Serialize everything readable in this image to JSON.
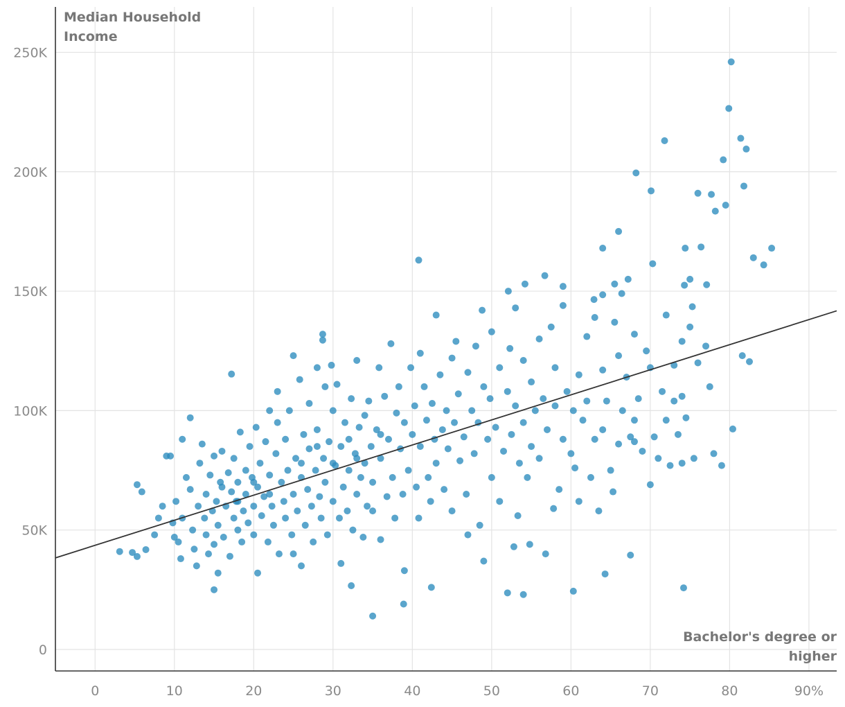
{
  "chart_data": {
    "type": "scatter",
    "ylabel_lines": [
      "Median Household",
      "Income"
    ],
    "xlabel_lines": [
      "Bachelor's degree or",
      "higher"
    ],
    "xlim": [
      -5,
      93.5
    ],
    "ylim": [
      -9000,
      269000
    ],
    "x_ticks": [
      {
        "value": 0,
        "label": "0"
      },
      {
        "value": 10,
        "label": "10"
      },
      {
        "value": 20,
        "label": "20"
      },
      {
        "value": 30,
        "label": "30"
      },
      {
        "value": 40,
        "label": "40"
      },
      {
        "value": 50,
        "label": "50"
      },
      {
        "value": 60,
        "label": "60"
      },
      {
        "value": 70,
        "label": "70"
      },
      {
        "value": 80,
        "label": "80"
      },
      {
        "value": 90,
        "label": "90%"
      }
    ],
    "y_ticks": [
      {
        "value": 0,
        "label": "0"
      },
      {
        "value": 50000,
        "label": "50K"
      },
      {
        "value": 100000,
        "label": "100K"
      },
      {
        "value": 150000,
        "label": "150K"
      },
      {
        "value": 200000,
        "label": "200K"
      },
      {
        "value": 250000,
        "label": "250K"
      }
    ],
    "grid": true,
    "point_color": "#2b8cbe",
    "trendline": {
      "intercept": 43600,
      "slope": 1050,
      "color": "#333333"
    },
    "points_k": [
      [
        80.2,
        246
      ],
      [
        79.9,
        226.5
      ],
      [
        81.4,
        214
      ],
      [
        71.8,
        213
      ],
      [
        82.1,
        209.5
      ],
      [
        79.2,
        205
      ],
      [
        68.2,
        199.5
      ],
      [
        81.8,
        194
      ],
      [
        70.1,
        192
      ],
      [
        76,
        191
      ],
      [
        77.7,
        190.5
      ],
      [
        79.5,
        186
      ],
      [
        78.2,
        183.5
      ],
      [
        66,
        175
      ],
      [
        64,
        168
      ],
      [
        85.3,
        168
      ],
      [
        76.4,
        168.5
      ],
      [
        74.4,
        168
      ],
      [
        83,
        164
      ],
      [
        84.3,
        161
      ],
      [
        70.3,
        161.5
      ],
      [
        40.8,
        163
      ],
      [
        56.7,
        156.5
      ],
      [
        67.2,
        155
      ],
      [
        75,
        155
      ],
      [
        54.2,
        153
      ],
      [
        65.5,
        153
      ],
      [
        74.3,
        152.5
      ],
      [
        77.1,
        152.7
      ],
      [
        59,
        152
      ],
      [
        52.1,
        150
      ],
      [
        64,
        148.5
      ],
      [
        66.4,
        149
      ],
      [
        75.3,
        143.5
      ],
      [
        62.9,
        146.5
      ],
      [
        17.2,
        115.3
      ],
      [
        28.7,
        132
      ],
      [
        28.7,
        129.5
      ],
      [
        35,
        14
      ],
      [
        38.9,
        19
      ],
      [
        52,
        23.7
      ],
      [
        54,
        23
      ],
      [
        60.3,
        24.4
      ],
      [
        74.2,
        25.8
      ],
      [
        15,
        25
      ],
      [
        64.3,
        31.6
      ],
      [
        42.4,
        26
      ],
      [
        32.3,
        26.7
      ],
      [
        67.5,
        39.5
      ],
      [
        80.4,
        92.3
      ],
      [
        82.5,
        120.5
      ],
      [
        81.6,
        123
      ],
      [
        3.1,
        41
      ],
      [
        4.7,
        40.6
      ],
      [
        6.4,
        41.8
      ],
      [
        5.3,
        38.9
      ],
      [
        5.3,
        69
      ],
      [
        5.9,
        66
      ],
      [
        7.5,
        48
      ],
      [
        8,
        55
      ],
      [
        8.5,
        60
      ],
      [
        9,
        81
      ],
      [
        9.5,
        81
      ],
      [
        9.8,
        53
      ],
      [
        10,
        47
      ],
      [
        10.2,
        62
      ],
      [
        10.5,
        45
      ],
      [
        10.8,
        38
      ],
      [
        11,
        88
      ],
      [
        11,
        55
      ],
      [
        11.5,
        72
      ],
      [
        12,
        67
      ],
      [
        12,
        97
      ],
      [
        12.3,
        50
      ],
      [
        12.5,
        42
      ],
      [
        12.8,
        35
      ],
      [
        13,
        60
      ],
      [
        13.2,
        78
      ],
      [
        13.5,
        86
      ],
      [
        13.8,
        55
      ],
      [
        14,
        65
      ],
      [
        14,
        48
      ],
      [
        14.3,
        40
      ],
      [
        14.5,
        73
      ],
      [
        14.8,
        58
      ],
      [
        15,
        81
      ],
      [
        15,
        44
      ],
      [
        15.3,
        62
      ],
      [
        15.5,
        52
      ],
      [
        15.5,
        32
      ],
      [
        15.8,
        70
      ],
      [
        16,
        83
      ],
      [
        16.2,
        47
      ],
      [
        16.5,
        60
      ],
      [
        16.8,
        74
      ],
      [
        17,
        39
      ],
      [
        17.2,
        66
      ],
      [
        17.5,
        55
      ],
      [
        17.5,
        80
      ],
      [
        17.8,
        62
      ],
      [
        18,
        70
      ],
      [
        18,
        50
      ],
      [
        18.3,
        91
      ],
      [
        18.5,
        45
      ],
      [
        18.7,
        58
      ],
      [
        19,
        75
      ],
      [
        19,
        65
      ],
      [
        19.3,
        53
      ],
      [
        19.5,
        85
      ],
      [
        19.8,
        72
      ],
      [
        20,
        60
      ],
      [
        20,
        48
      ],
      [
        20.3,
        93
      ],
      [
        20.5,
        68
      ],
      [
        20.5,
        32
      ],
      [
        20.8,
        78
      ],
      [
        21,
        56
      ],
      [
        21.3,
        64
      ],
      [
        21.5,
        87
      ],
      [
        21.8,
        45
      ],
      [
        22,
        73
      ],
      [
        22,
        100
      ],
      [
        22.3,
        60
      ],
      [
        22.5,
        52
      ],
      [
        22.8,
        82
      ],
      [
        23,
        95
      ],
      [
        23,
        108
      ],
      [
        23.2,
        40
      ],
      [
        23.5,
        70
      ],
      [
        23.8,
        62
      ],
      [
        24,
        55
      ],
      [
        24,
        88
      ],
      [
        24.3,
        75
      ],
      [
        24.5,
        100
      ],
      [
        24.8,
        48
      ],
      [
        25,
        123
      ],
      [
        25,
        65
      ],
      [
        25.3,
        80
      ],
      [
        25.5,
        58
      ],
      [
        25.8,
        113
      ],
      [
        26,
        72
      ],
      [
        26,
        35
      ],
      [
        26.3,
        90
      ],
      [
        26.5,
        52
      ],
      [
        26.8,
        67
      ],
      [
        27,
        103
      ],
      [
        27,
        84
      ],
      [
        27.3,
        60
      ],
      [
        27.5,
        45
      ],
      [
        27.8,
        75
      ],
      [
        28,
        118
      ],
      [
        28,
        92
      ],
      [
        28.3,
        64
      ],
      [
        28.5,
        55
      ],
      [
        28.8,
        80
      ],
      [
        29,
        110
      ],
      [
        29,
        70
      ],
      [
        29.3,
        48
      ],
      [
        29.5,
        87
      ],
      [
        29.8,
        119
      ],
      [
        30,
        62
      ],
      [
        30,
        100
      ],
      [
        30.3,
        77
      ],
      [
        30.5,
        111
      ],
      [
        30.8,
        55
      ],
      [
        31,
        85
      ],
      [
        31,
        36
      ],
      [
        31.3,
        68
      ],
      [
        31.5,
        95
      ],
      [
        31.8,
        58
      ],
      [
        32,
        75
      ],
      [
        32,
        88
      ],
      [
        32.3,
        105
      ],
      [
        32.5,
        50
      ],
      [
        32.8,
        82
      ],
      [
        33,
        121
      ],
      [
        33,
        65
      ],
      [
        33.3,
        93
      ],
      [
        33.5,
        72
      ],
      [
        33.8,
        47
      ],
      [
        34,
        98
      ],
      [
        34,
        78
      ],
      [
        34.3,
        60
      ],
      [
        34.5,
        104
      ],
      [
        34.8,
        85
      ],
      [
        35,
        58
      ],
      [
        35,
        70
      ],
      [
        35.5,
        92
      ],
      [
        35.8,
        118
      ],
      [
        36,
        80
      ],
      [
        36,
        46
      ],
      [
        36.5,
        106
      ],
      [
        36.8,
        64
      ],
      [
        37,
        88
      ],
      [
        37.3,
        128
      ],
      [
        37.5,
        72
      ],
      [
        37.8,
        55
      ],
      [
        38,
        99
      ],
      [
        38.3,
        110
      ],
      [
        38.5,
        84
      ],
      [
        38.8,
        65
      ],
      [
        39,
        95
      ],
      [
        39,
        33
      ],
      [
        39.5,
        75
      ],
      [
        39.8,
        118
      ],
      [
        40,
        90
      ],
      [
        40.3,
        102
      ],
      [
        40.5,
        68
      ],
      [
        40.8,
        55
      ],
      [
        41,
        124
      ],
      [
        41,
        85
      ],
      [
        41.5,
        110
      ],
      [
        41.8,
        96
      ],
      [
        42,
        72
      ],
      [
        42.3,
        62
      ],
      [
        42.5,
        103
      ],
      [
        42.8,
        88
      ],
      [
        43,
        140
      ],
      [
        43,
        78
      ],
      [
        43.5,
        115
      ],
      [
        43.8,
        92
      ],
      [
        44,
        67
      ],
      [
        44.3,
        100
      ],
      [
        44.5,
        84
      ],
      [
        45,
        58
      ],
      [
        45,
        122
      ],
      [
        45.3,
        95
      ],
      [
        45.5,
        129
      ],
      [
        45.8,
        107
      ],
      [
        46,
        79
      ],
      [
        46.5,
        89
      ],
      [
        46.8,
        65
      ],
      [
        47,
        116
      ],
      [
        47,
        48
      ],
      [
        47.5,
        100
      ],
      [
        47.8,
        82
      ],
      [
        48,
        127
      ],
      [
        48.3,
        95
      ],
      [
        48.5,
        52
      ],
      [
        48.8,
        142
      ],
      [
        49,
        110
      ],
      [
        49,
        37
      ],
      [
        49.5,
        88
      ],
      [
        49.8,
        105
      ],
      [
        50,
        72
      ],
      [
        50,
        133
      ],
      [
        50.5,
        93
      ],
      [
        51,
        62
      ],
      [
        51,
        118
      ],
      [
        51.5,
        83
      ],
      [
        52,
        108
      ],
      [
        52.3,
        126
      ],
      [
        52.5,
        90
      ],
      [
        52.8,
        43
      ],
      [
        53,
        143
      ],
      [
        53,
        102
      ],
      [
        53.3,
        56
      ],
      [
        53.5,
        78
      ],
      [
        54,
        121
      ],
      [
        54,
        95
      ],
      [
        54.5,
        72
      ],
      [
        54.8,
        44
      ],
      [
        55,
        112
      ],
      [
        55,
        85
      ],
      [
        55.5,
        100
      ],
      [
        56,
        80
      ],
      [
        56,
        130
      ],
      [
        56.5,
        105
      ],
      [
        56.8,
        40
      ],
      [
        57,
        92
      ],
      [
        57.5,
        135
      ],
      [
        57.8,
        59
      ],
      [
        58,
        118
      ],
      [
        58,
        102
      ],
      [
        58.5,
        67
      ],
      [
        59,
        88
      ],
      [
        59,
        144
      ],
      [
        59.5,
        108
      ],
      [
        60,
        82
      ],
      [
        60.3,
        100
      ],
      [
        60.5,
        76
      ],
      [
        61,
        115
      ],
      [
        61,
        62
      ],
      [
        61.5,
        96
      ],
      [
        62,
        131
      ],
      [
        62,
        104
      ],
      [
        62.5,
        72
      ],
      [
        63,
        88
      ],
      [
        63,
        139
      ],
      [
        63.5,
        58
      ],
      [
        64,
        117
      ],
      [
        64,
        92
      ],
      [
        64.5,
        104
      ],
      [
        65,
        75
      ],
      [
        65.3,
        66
      ],
      [
        65.5,
        137
      ],
      [
        66,
        86
      ],
      [
        66,
        123
      ],
      [
        66.5,
        100
      ],
      [
        67,
        114
      ],
      [
        67.5,
        89
      ],
      [
        68,
        132
      ],
      [
        68,
        96
      ],
      [
        68.5,
        105
      ],
      [
        69,
        83
      ],
      [
        69.5,
        125
      ],
      [
        70,
        69
      ],
      [
        70,
        118
      ],
      [
        70.5,
        89
      ],
      [
        71,
        80
      ],
      [
        71.5,
        108
      ],
      [
        72,
        96
      ],
      [
        72,
        140
      ],
      [
        72.5,
        77
      ],
      [
        73,
        119
      ],
      [
        73,
        104
      ],
      [
        73.5,
        90
      ],
      [
        74,
        106
      ],
      [
        74,
        129
      ],
      [
        74.5,
        97
      ],
      [
        75,
        135
      ],
      [
        75.5,
        80
      ],
      [
        76,
        120
      ],
      [
        77,
        127
      ],
      [
        77.5,
        110
      ],
      [
        78,
        82
      ],
      [
        79,
        77
      ],
      [
        74,
        78
      ],
      [
        68,
        87
      ],
      [
        30,
        78
      ],
      [
        25,
        40
      ],
      [
        20,
        70
      ],
      [
        18,
        62
      ],
      [
        16,
        68
      ],
      [
        22,
        65
      ],
      [
        26,
        78
      ],
      [
        28,
        85
      ],
      [
        33,
        80
      ],
      [
        36,
        90
      ]
    ]
  }
}
